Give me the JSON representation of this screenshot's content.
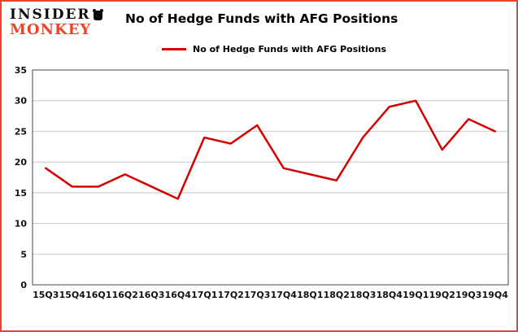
{
  "logo": {
    "line1": "INSIDER",
    "line2": "MONKEY"
  },
  "header": {
    "title": "No of Hedge Funds with AFG Positions"
  },
  "legend": {
    "label": "No of Hedge Funds with AFG Positions"
  },
  "colors": {
    "line": "#d40000",
    "frame_border": "#e9452c",
    "grid": "#c8c8c8",
    "plot_border": "#444444"
  },
  "chart_data": {
    "type": "line",
    "title": "No of Hedge Funds with AFG Positions",
    "categories": [
      "15Q3",
      "15Q4",
      "16Q1",
      "16Q2",
      "16Q3",
      "16Q4",
      "17Q1",
      "17Q2",
      "17Q3",
      "17Q4",
      "18Q1",
      "18Q2",
      "18Q3",
      "18Q4",
      "19Q1",
      "19Q2",
      "19Q3",
      "19Q4"
    ],
    "series": [
      {
        "name": "No of Hedge Funds with AFG Positions",
        "values": [
          19,
          16,
          16,
          18,
          16,
          14,
          24,
          23,
          26,
          19,
          18,
          17,
          24,
          29,
          30,
          22,
          27,
          25
        ]
      }
    ],
    "xlabel": "",
    "ylabel": "",
    "ylim": [
      0,
      35
    ],
    "yticks": [
      0,
      5,
      10,
      15,
      20,
      25,
      30,
      35
    ],
    "grid": true,
    "legend_position": "top-left"
  }
}
